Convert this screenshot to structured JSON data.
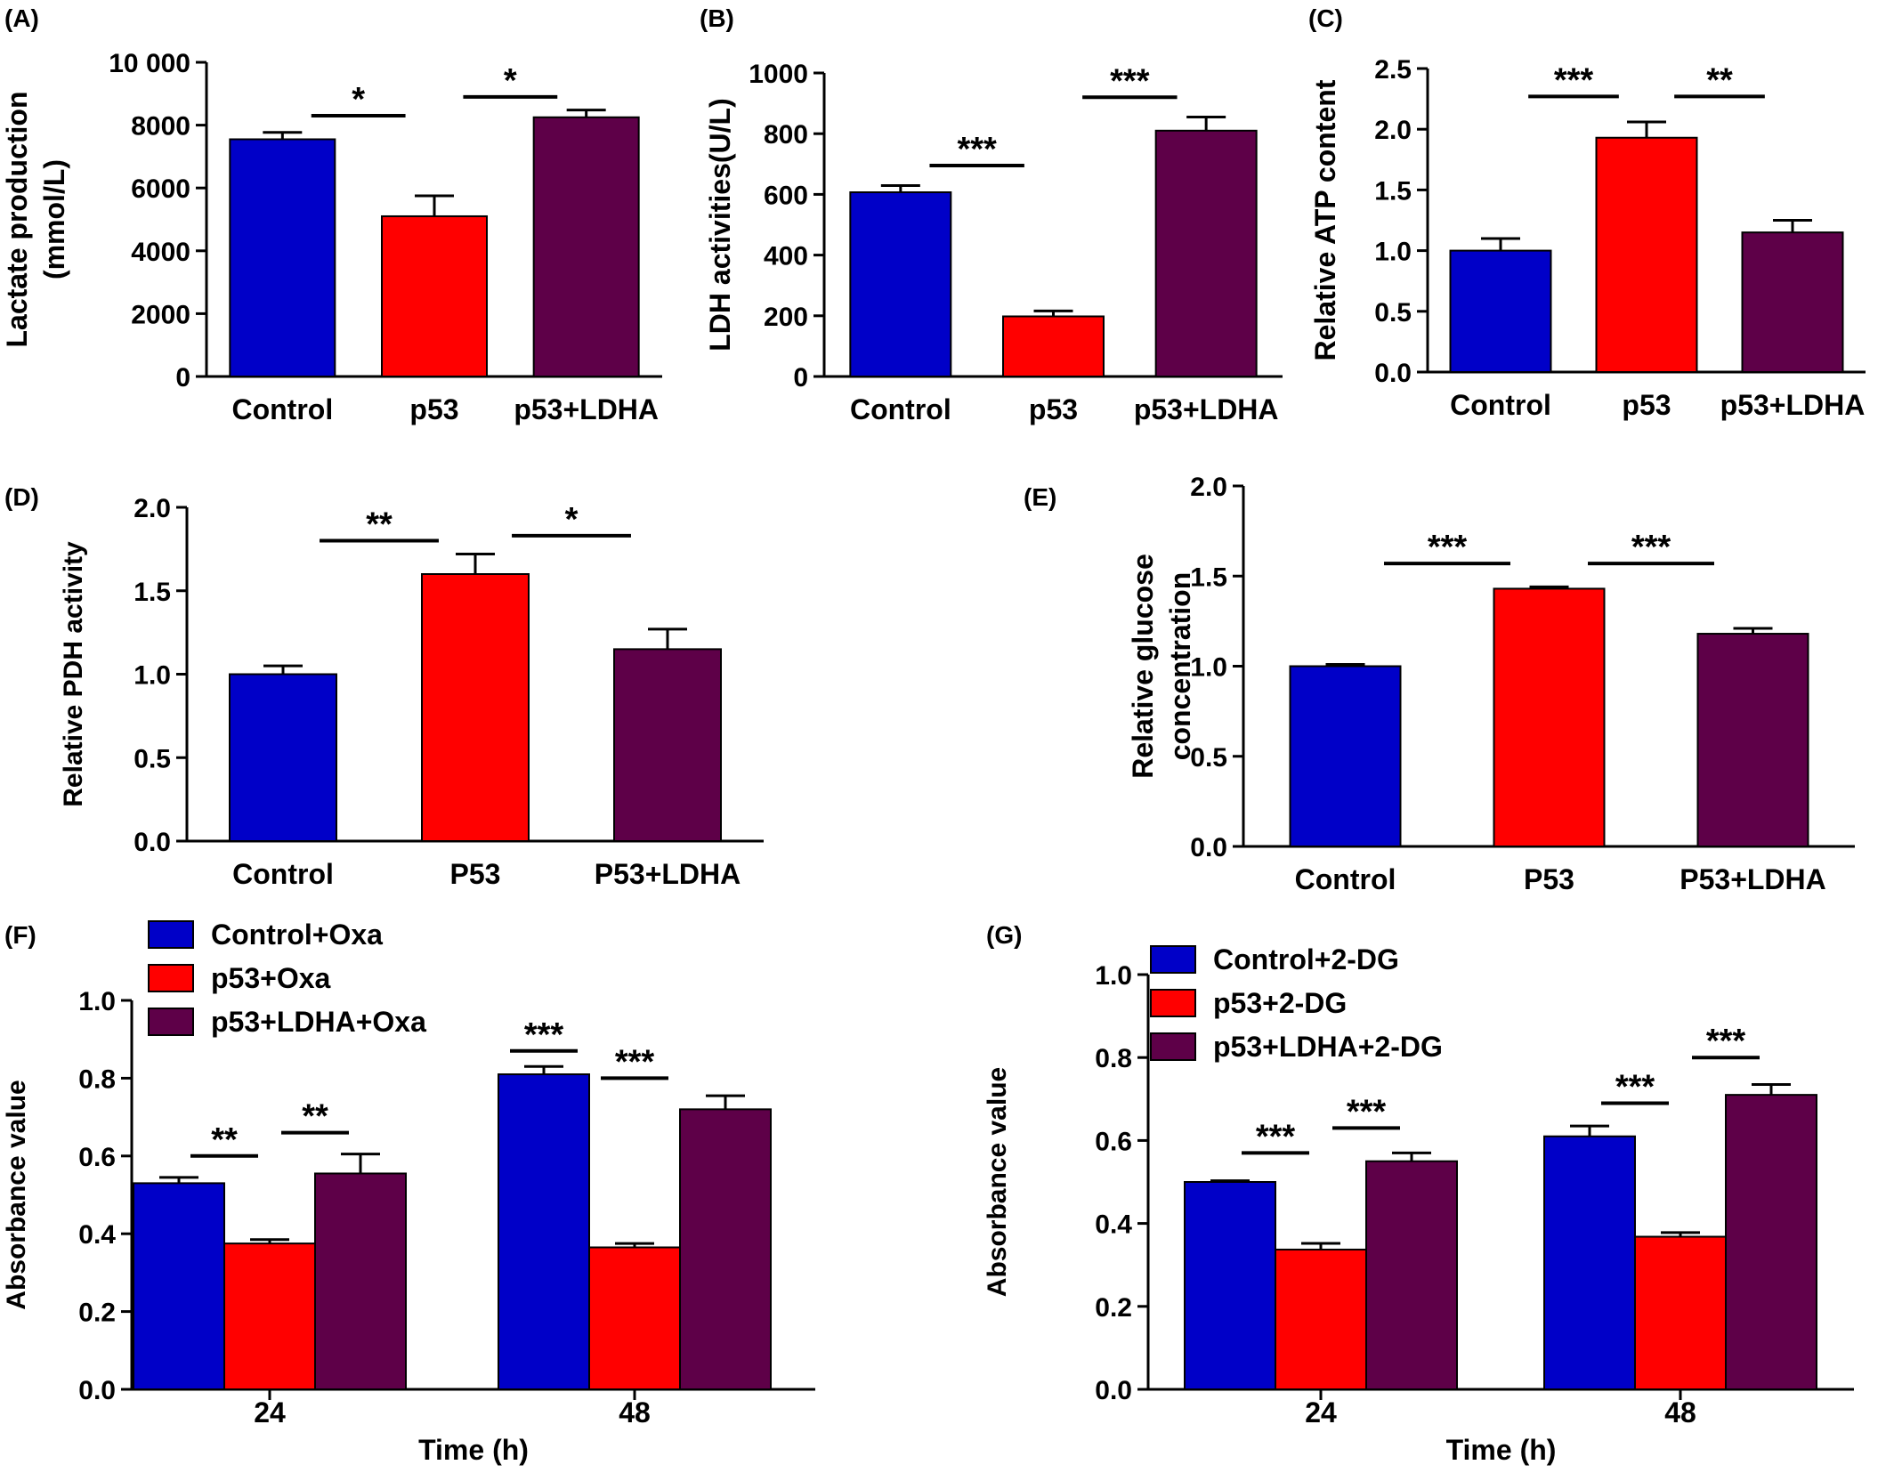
{
  "figure": {
    "colors": {
      "blue": "#0000C8",
      "red": "#FF0000",
      "purple": "#5E0048"
    },
    "icons": [
      "legend-swatch-blue",
      "legend-swatch-red",
      "legend-swatch-purple"
    ]
  },
  "chart_data": [
    {
      "id": "A",
      "panel_label": "(A)",
      "type": "bar",
      "ylabel": "Lactate production",
      "ylabel2": "(mmol/L)",
      "xlabel": "",
      "ylim": [
        0,
        10000
      ],
      "yticks": [
        0,
        2000,
        4000,
        6000,
        8000,
        10000
      ],
      "ytick_labels": [
        "0",
        "2000",
        "4000",
        "6000",
        "8000",
        "10 000"
      ],
      "categories": [
        "Control",
        "p53",
        "p53+LDHA"
      ],
      "values": [
        7550,
        5100,
        8250
      ],
      "errors": [
        220,
        650,
        230
      ],
      "colors": [
        "#0000C8",
        "#FF0000",
        "#5E0048"
      ],
      "significance": [
        {
          "from": 0,
          "to": 1,
          "label": "*",
          "y": 8300
        },
        {
          "from": 1,
          "to": 2,
          "label": "*",
          "y": 8900
        }
      ]
    },
    {
      "id": "B",
      "panel_label": "(B)",
      "type": "bar",
      "ylabel": "LDH activities(U/L)",
      "xlabel": "",
      "ylim": [
        0,
        1000
      ],
      "yticks": [
        0,
        200,
        400,
        600,
        800,
        1000
      ],
      "ytick_labels": [
        "0",
        "200",
        "400",
        "600",
        "800",
        "1000"
      ],
      "categories": [
        "Control",
        "p53",
        "p53+LDHA"
      ],
      "values": [
        607,
        198,
        810
      ],
      "errors": [
        22,
        18,
        45
      ],
      "colors": [
        "#0000C8",
        "#FF0000",
        "#5E0048"
      ],
      "significance": [
        {
          "from": 0,
          "to": 1,
          "label": "***",
          "y": 695
        },
        {
          "from": 1,
          "to": 2,
          "label": "***",
          "y": 920
        }
      ]
    },
    {
      "id": "C",
      "panel_label": "(C)",
      "type": "bar",
      "ylabel": "Relative ATP content",
      "xlabel": "",
      "ylim": [
        0,
        2.5
      ],
      "yticks": [
        0,
        0.5,
        1.0,
        1.5,
        2.0,
        2.5
      ],
      "ytick_labels": [
        "0.0",
        "0.5",
        "1.0",
        "1.5",
        "2.0",
        "2.5"
      ],
      "categories": [
        "Control",
        "p53",
        "p53+LDHA"
      ],
      "values": [
        1.0,
        1.93,
        1.15
      ],
      "errors": [
        0.1,
        0.13,
        0.1
      ],
      "colors": [
        "#0000C8",
        "#FF0000",
        "#5E0048"
      ],
      "significance": [
        {
          "from": 0,
          "to": 1,
          "label": "***",
          "y": 2.27
        },
        {
          "from": 1,
          "to": 2,
          "label": "**",
          "y": 2.27
        }
      ]
    },
    {
      "id": "D",
      "panel_label": "(D)",
      "type": "bar",
      "ylabel": "Relative PDH activity",
      "xlabel": "",
      "ylim": [
        0,
        2.0
      ],
      "yticks": [
        0,
        0.5,
        1.0,
        1.5,
        2.0
      ],
      "ytick_labels": [
        "0.0",
        "0.5",
        "1.0",
        "1.5",
        "2.0"
      ],
      "categories": [
        "Control",
        "P53",
        "P53+LDHA"
      ],
      "values": [
        1.0,
        1.6,
        1.15
      ],
      "errors": [
        0.05,
        0.12,
        0.12
      ],
      "colors": [
        "#0000C8",
        "#FF0000",
        "#5E0048"
      ],
      "significance": [
        {
          "from": 0,
          "to": 1,
          "label": "**",
          "y": 1.8
        },
        {
          "from": 1,
          "to": 2,
          "label": "*",
          "y": 1.83
        }
      ]
    },
    {
      "id": "E",
      "panel_label": "(E)",
      "type": "bar",
      "ylabel": "Relative glucose",
      "ylabel2": "concentration",
      "xlabel": "",
      "ylim": [
        0,
        2.0
      ],
      "yticks": [
        0,
        0.5,
        1.0,
        1.5,
        2.0
      ],
      "ytick_labels": [
        "0.0",
        "0.5",
        "1.0",
        "1.5",
        "2.0"
      ],
      "categories": [
        "Control",
        "P53",
        "P53+LDHA"
      ],
      "values": [
        1.0,
        1.43,
        1.18
      ],
      "errors": [
        0.01,
        0.01,
        0.03
      ],
      "colors": [
        "#0000C8",
        "#FF0000",
        "#5E0048"
      ],
      "significance": [
        {
          "from": 0,
          "to": 1,
          "label": "***",
          "y": 1.57
        },
        {
          "from": 1,
          "to": 2,
          "label": "***",
          "y": 1.57
        }
      ]
    },
    {
      "id": "F",
      "panel_label": "(F)",
      "type": "bar",
      "ylabel": "Absorbance value",
      "xlabel": "Time (h)",
      "ylim": [
        0,
        1.0
      ],
      "yticks": [
        0,
        0.2,
        0.4,
        0.6,
        0.8,
        1.0
      ],
      "ytick_labels": [
        "0.0",
        "0.2",
        "0.4",
        "0.6",
        "0.8",
        "1.0"
      ],
      "categories": [
        "24",
        "48"
      ],
      "legend": [
        "Control+Oxa",
        "p53+Oxa",
        "p53+LDHA+Oxa"
      ],
      "legend_position": "top-left",
      "series": [
        {
          "name": "Control+Oxa",
          "values": [
            0.53,
            0.81
          ],
          "errors": [
            0.015,
            0.02
          ],
          "color": "#0000C8"
        },
        {
          "name": "p53+Oxa",
          "values": [
            0.375,
            0.365
          ],
          "errors": [
            0.01,
            0.01
          ],
          "color": "#FF0000"
        },
        {
          "name": "p53+LDHA+Oxa",
          "values": [
            0.555,
            0.72
          ],
          "errors": [
            0.05,
            0.035
          ],
          "color": "#5E0048"
        }
      ],
      "significance": [
        {
          "group": 0,
          "from": 0,
          "to": 1,
          "label": "**",
          "y": 0.6
        },
        {
          "group": 0,
          "from": 1,
          "to": 2,
          "label": "**",
          "y": 0.66
        },
        {
          "group": 1,
          "from": 0,
          "to": 0,
          "label": "***",
          "y": 0.87
        },
        {
          "group": 1,
          "from": 1,
          "to": 1,
          "label": "***",
          "y": 0.8
        }
      ]
    },
    {
      "id": "G",
      "panel_label": "(G)",
      "type": "bar",
      "ylabel": "Absorbance value",
      "xlabel": "Time (h)",
      "ylim": [
        0,
        1.0
      ],
      "yticks": [
        0,
        0.2,
        0.4,
        0.6,
        0.8,
        1.0
      ],
      "ytick_labels": [
        "0.0",
        "0.2",
        "0.4",
        "0.6",
        "0.8",
        "1.0"
      ],
      "categories": [
        "24",
        "48"
      ],
      "legend": [
        "Control+2-DG",
        "p53+2-DG",
        "p53+LDHA+2-DG"
      ],
      "legend_position": "top-left",
      "series": [
        {
          "name": "Control+2-DG",
          "values": [
            0.5,
            0.61
          ],
          "errors": [
            0.003,
            0.025
          ],
          "color": "#0000C8"
        },
        {
          "name": "p53+2-DG",
          "values": [
            0.337,
            0.368
          ],
          "errors": [
            0.015,
            0.01
          ],
          "color": "#FF0000"
        },
        {
          "name": "p53+LDHA+2-DG",
          "values": [
            0.55,
            0.71
          ],
          "errors": [
            0.02,
            0.025
          ],
          "color": "#5E0048"
        }
      ],
      "significance": [
        {
          "group": 0,
          "from": 0,
          "to": 1,
          "label": "***",
          "y": 0.57
        },
        {
          "group": 0,
          "from": 1,
          "to": 2,
          "label": "***",
          "y": 0.63
        },
        {
          "group": 1,
          "from": 0,
          "to": 1,
          "label": "***",
          "y": 0.69
        },
        {
          "group": 1,
          "from": 1,
          "to": 2,
          "label": "***",
          "y": 0.8
        }
      ]
    }
  ]
}
